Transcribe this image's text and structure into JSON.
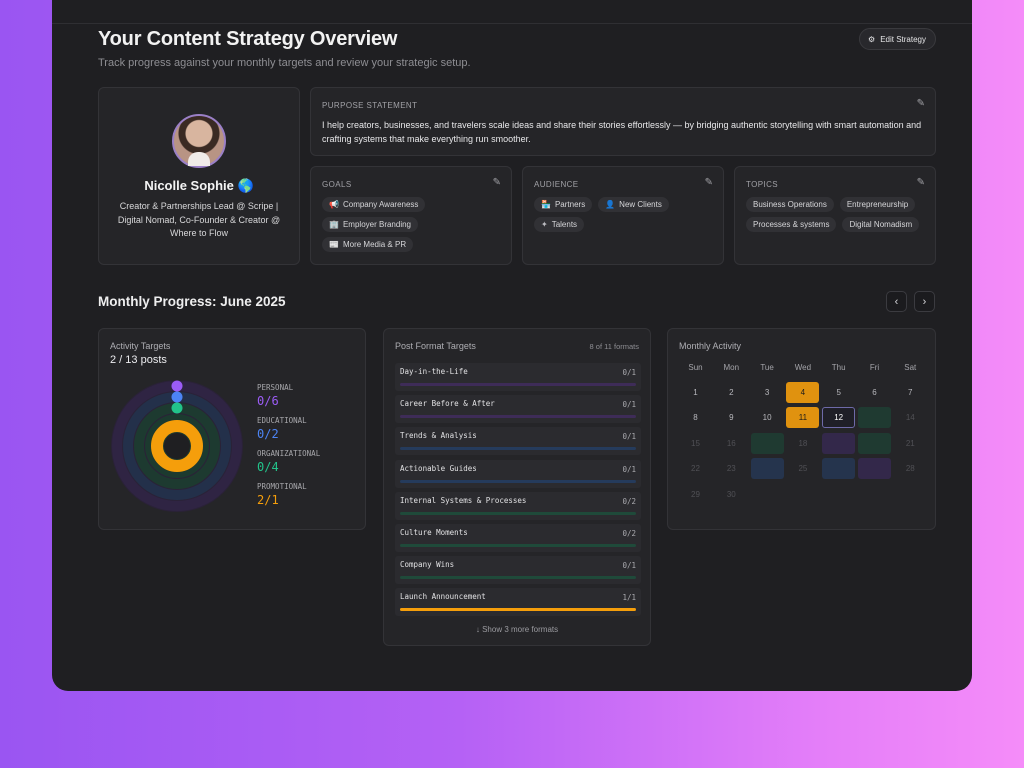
{
  "header": {
    "title": "Your Content Strategy Overview",
    "subtitle": "Track progress against your monthly targets and review your strategic setup.",
    "edit_button": "Edit Strategy",
    "edit_icon": "gear-icon"
  },
  "profile": {
    "name": "Nicolle Sophie 🌎",
    "bio": "Creator & Partnerships Lead @ Scripe | Digital Nomad, Co-Founder & Creator @ Where to Flow"
  },
  "purpose": {
    "label": "PURPOSE STATEMENT",
    "text": "I help creators, businesses, and travelers scale ideas and share their stories effortlessly — by bridging authentic storytelling with smart automation and crafting systems that make everything run smoother."
  },
  "goals": {
    "label": "GOALS",
    "items": [
      {
        "label": "Company Awareness",
        "icon": "megaphone-icon",
        "glyph": "📢"
      },
      {
        "label": "Employer Branding",
        "icon": "building-icon",
        "glyph": "🏢"
      },
      {
        "label": "More Media & PR",
        "icon": "newspaper-icon",
        "glyph": "📰"
      }
    ]
  },
  "audience": {
    "label": "AUDIENCE",
    "items": [
      {
        "label": "Partners",
        "icon": "store-icon",
        "glyph": "🏪"
      },
      {
        "label": "New Clients",
        "icon": "user-plus-icon",
        "glyph": "👤"
      },
      {
        "label": "Talents",
        "icon": "sparkles-icon",
        "glyph": "✦"
      }
    ]
  },
  "topics": {
    "label": "TOPICS",
    "items": [
      "Business Operations",
      "Entrepreneurship",
      "Processes & systems",
      "Digital Nomadism"
    ]
  },
  "monthly_progress": {
    "title": "Monthly Progress: June 2025"
  },
  "activity_targets": {
    "title": "Activity Targets",
    "posts": "2 / 13 posts",
    "categories": [
      {
        "label": "PERSONAL",
        "value": "0/6",
        "color": "#9b5cf6",
        "done": 0,
        "target": 6
      },
      {
        "label": "EDUCATIONAL",
        "value": "0/2",
        "color": "#4c84f5",
        "done": 0,
        "target": 2
      },
      {
        "label": "ORGANIZATIONAL",
        "value": "0/4",
        "color": "#22c38a",
        "done": 0,
        "target": 4
      },
      {
        "label": "PROMOTIONAL",
        "value": "2/1",
        "color": "#f59e0b",
        "done": 2,
        "target": 1
      }
    ]
  },
  "post_formats": {
    "title": "Post Format Targets",
    "count_label": "8 of 11 formats",
    "show_more": "↓ Show 3 more formats",
    "items": [
      {
        "name": "Day-in-the-Life",
        "count": "0/1",
        "progress": 0,
        "track": "#3e2c58",
        "fill": "#8b5cf6"
      },
      {
        "name": "Career Before & After",
        "count": "0/1",
        "progress": 0,
        "track": "#3e2c58",
        "fill": "#8b5cf6"
      },
      {
        "name": "Trends & Analysis",
        "count": "0/1",
        "progress": 0,
        "track": "#253b5c",
        "fill": "#4c84f5"
      },
      {
        "name": "Actionable Guides",
        "count": "0/1",
        "progress": 0,
        "track": "#253b5c",
        "fill": "#4c84f5"
      },
      {
        "name": "Internal Systems & Processes",
        "count": "0/2",
        "progress": 0,
        "track": "#1f4a3a",
        "fill": "#22c38a"
      },
      {
        "name": "Culture Moments",
        "count": "0/2",
        "progress": 0,
        "track": "#1f4a3a",
        "fill": "#22c38a"
      },
      {
        "name": "Company Wins",
        "count": "0/1",
        "progress": 0,
        "track": "#1f4a3a",
        "fill": "#22c38a"
      },
      {
        "name": "Launch Announcement",
        "count": "1/1",
        "progress": 1,
        "track": "#5a4213",
        "fill": "#f59e0b"
      }
    ]
  },
  "monthly_activity": {
    "title": "Monthly Activity",
    "weekdays": [
      "Sun",
      "Mon",
      "Tue",
      "Wed",
      "Thu",
      "Fri",
      "Sat"
    ],
    "weeks": [
      [
        {
          "d": "1"
        },
        {
          "d": "2"
        },
        {
          "d": "3"
        },
        {
          "d": "4",
          "state": "posted"
        },
        {
          "d": "5"
        },
        {
          "d": "6"
        },
        {
          "d": "7"
        }
      ],
      [
        {
          "d": "8"
        },
        {
          "d": "9"
        },
        {
          "d": "10"
        },
        {
          "d": "11",
          "state": "posted"
        },
        {
          "d": "12",
          "state": "today"
        },
        {
          "d": "13",
          "state": "green"
        },
        {
          "d": "14",
          "state": "future"
        }
      ],
      [
        {
          "d": "15",
          "state": "future"
        },
        {
          "d": "16",
          "state": "future"
        },
        {
          "d": "17",
          "state": "green"
        },
        {
          "d": "18",
          "state": "future"
        },
        {
          "d": "19",
          "state": "purple"
        },
        {
          "d": "20",
          "state": "green"
        },
        {
          "d": "21",
          "state": "future"
        }
      ],
      [
        {
          "d": "22",
          "state": "future"
        },
        {
          "d": "23",
          "state": "future"
        },
        {
          "d": "24",
          "state": "blue"
        },
        {
          "d": "25",
          "state": "future"
        },
        {
          "d": "26",
          "state": "blue"
        },
        {
          "d": "27",
          "state": "purple"
        },
        {
          "d": "28",
          "state": "future"
        }
      ],
      [
        {
          "d": "29",
          "state": "future"
        },
        {
          "d": "30",
          "state": "future"
        }
      ]
    ],
    "state_colors": {
      "posted": "#e0920f",
      "today": "#1f1f27",
      "green": "#1f3a31",
      "purple": "#33284a",
      "blue": "#25344d"
    }
  }
}
